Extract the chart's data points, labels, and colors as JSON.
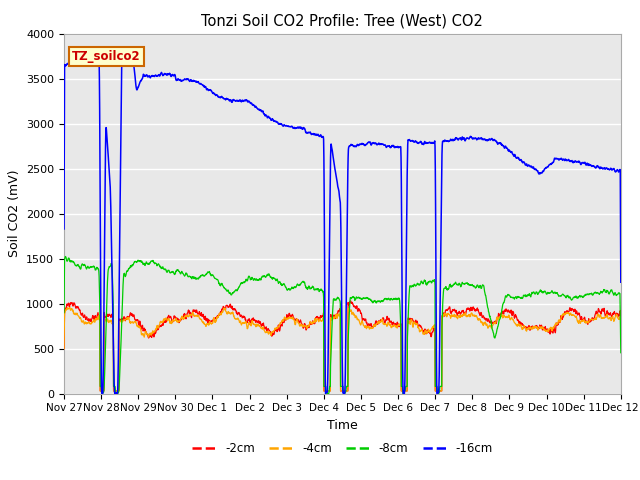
{
  "title": "Tonzi Soil CO2 Profile: Tree (West) CO2",
  "ylabel": "Soil CO2 (mV)",
  "xlabel": "Time",
  "legend_label": "TZ_soilco2",
  "ylim": [
    0,
    4000
  ],
  "series_labels": [
    "-2cm",
    "-4cm",
    "-8cm",
    "-16cm"
  ],
  "series_colors": [
    "#ff0000",
    "#ffa500",
    "#00cc00",
    "#0000ff"
  ],
  "background_color": "#e8e8e8",
  "x_tick_labels": [
    "Nov 27",
    "Nov 28",
    "Nov 29",
    "Nov 30",
    "Dec 1",
    "Dec 2",
    "Dec 3",
    "Dec 4",
    "Dec 5",
    "Dec 6",
    "Dec 7",
    "Dec 8",
    "Dec 9",
    "Dec 10",
    "Dec 11",
    "Dec 12"
  ],
  "ytick_step": 500,
  "grid_color": "#ffffff",
  "legend_box_facecolor": "#ffffcc",
  "legend_box_edgecolor": "#cc6600",
  "legend_text_color": "#cc0000"
}
